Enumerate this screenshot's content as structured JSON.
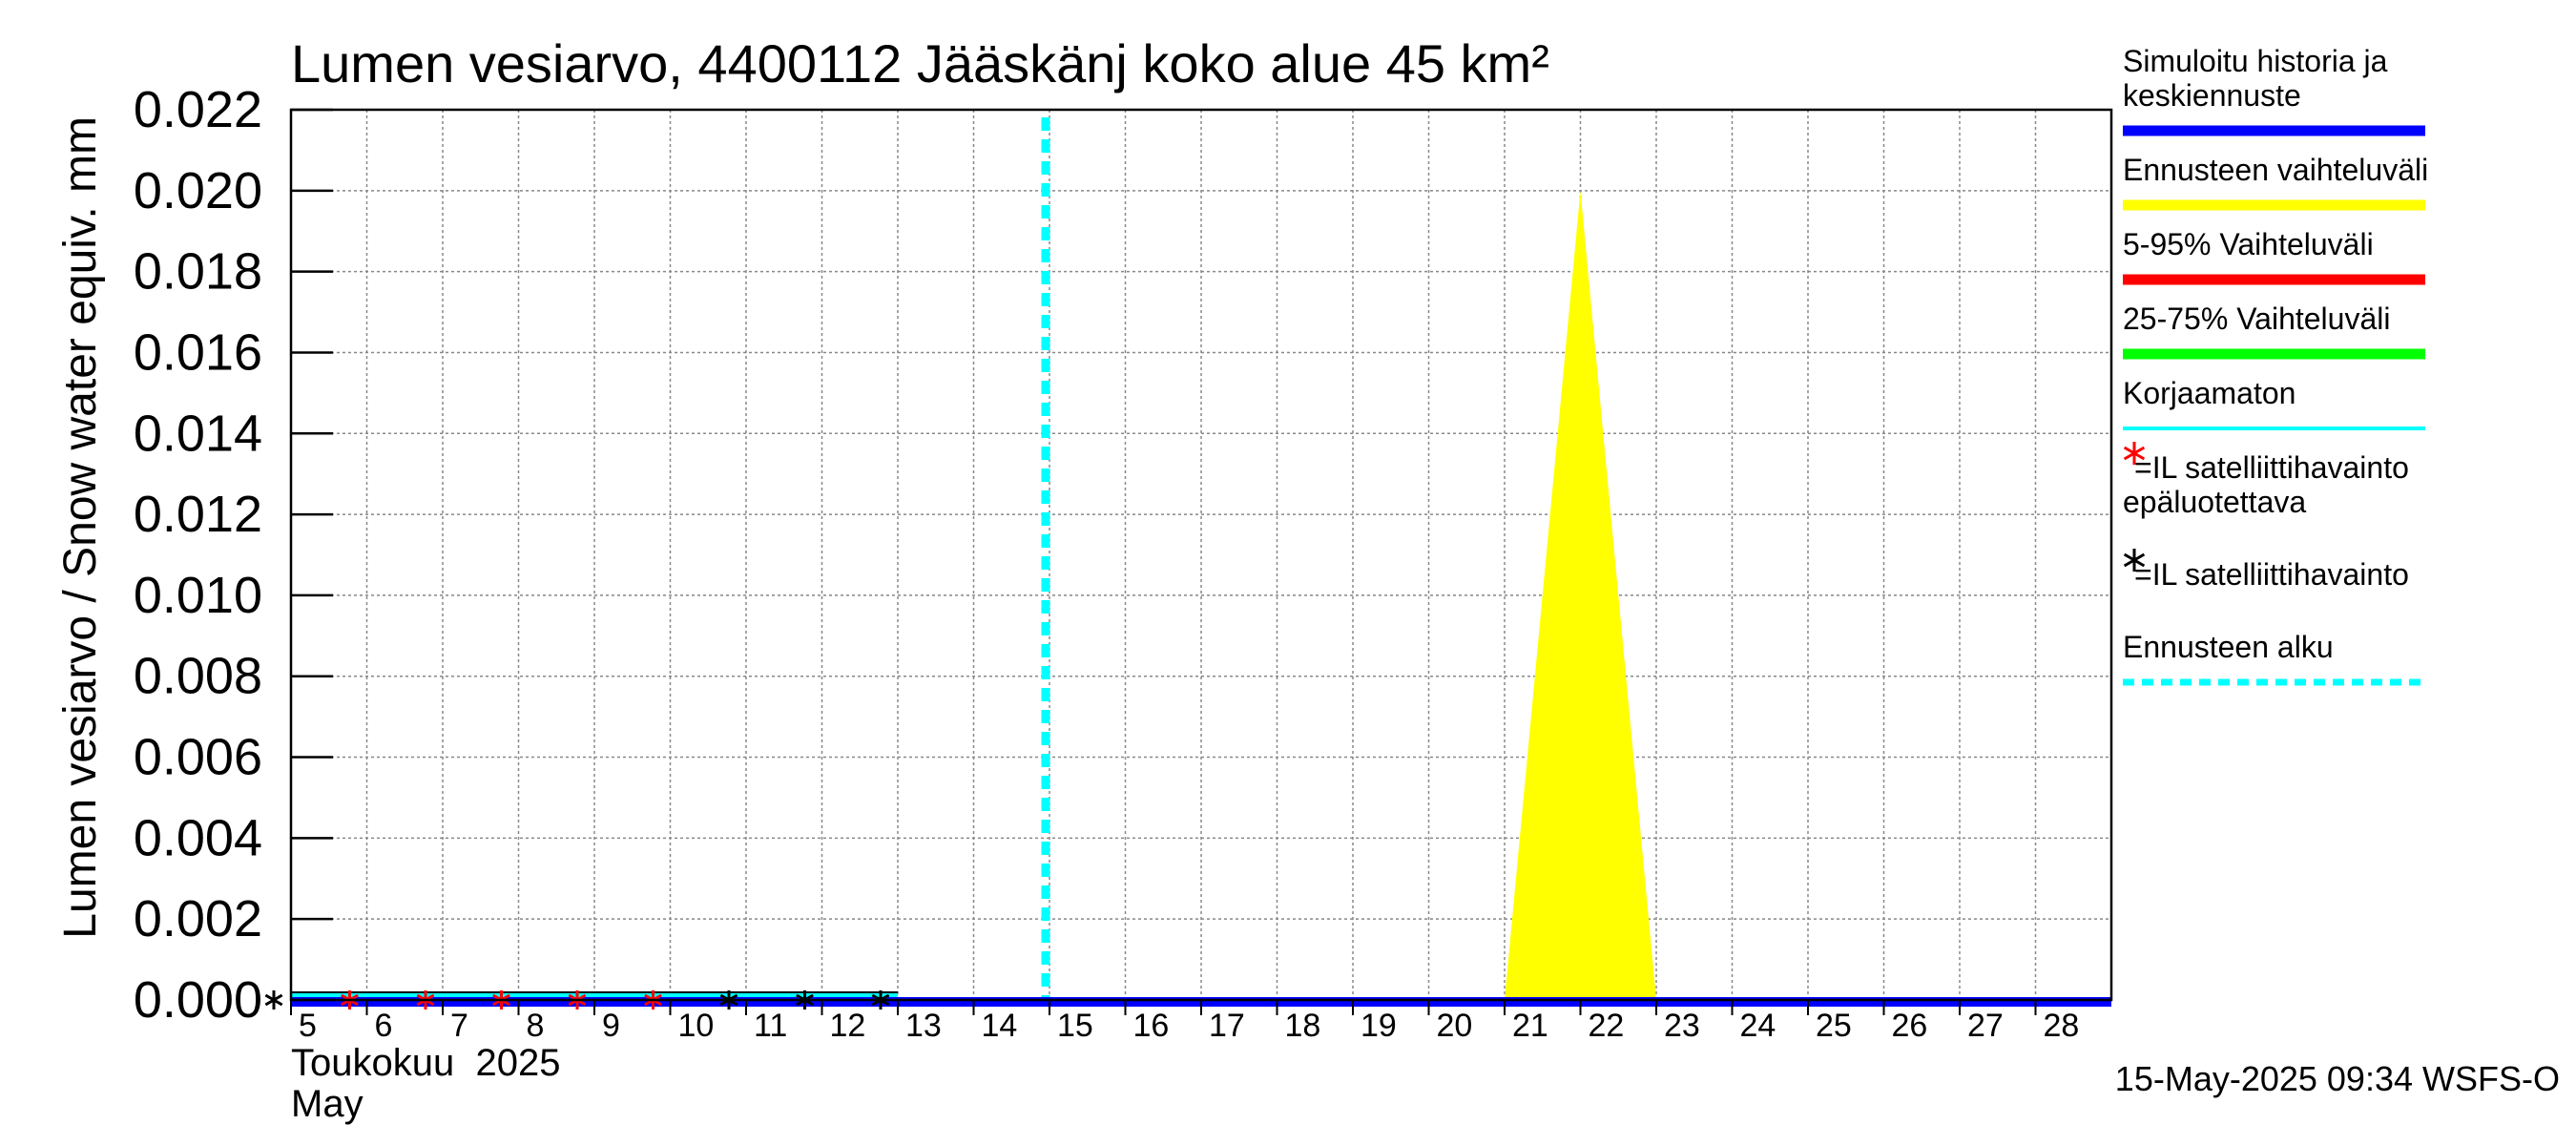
{
  "chart_data": {
    "type": "area",
    "title": "Lumen vesiarvo, 4400112 Jääskänj koko alue 45 km²",
    "ylabel": "Lumen vesiarvo / Snow water equiv.",
    "yunit": "mm",
    "ylim": [
      0,
      0.022
    ],
    "yticks": [
      "0.000",
      "0.002",
      "0.004",
      "0.006",
      "0.008",
      "0.010",
      "0.012",
      "0.014",
      "0.016",
      "0.018",
      "0.020",
      "0.022"
    ],
    "xlim": [
      5,
      29
    ],
    "xticks": [
      5,
      6,
      7,
      8,
      9,
      10,
      11,
      12,
      13,
      14,
      15,
      16,
      17,
      18,
      19,
      20,
      21,
      22,
      23,
      24,
      25,
      26,
      27,
      28
    ],
    "xlabel_line1": "Toukokuu  2025",
    "xlabel_line2": "May",
    "grid": true,
    "forecast_start": 15,
    "series": [
      {
        "name": "Simuloitu historia ja keskiennuste",
        "color": "#0000ff",
        "x": [
          5,
          29
        ],
        "y": [
          0,
          0
        ]
      },
      {
        "name": "Ennusteen vaihteluväli",
        "color": "#ffff00",
        "x": [
          21,
          22,
          23
        ],
        "y": [
          0,
          0.02,
          0
        ]
      },
      {
        "name": "Korjaamaton",
        "color": "#00ffff",
        "x": [
          5,
          13
        ],
        "y": [
          0,
          0
        ]
      }
    ],
    "observations_unreliable": {
      "color": "#ff0000",
      "x": [
        6,
        7,
        8,
        9,
        10
      ],
      "y": [
        0,
        0,
        0,
        0,
        0
      ]
    },
    "observations": {
      "color": "#000000",
      "x": [
        5,
        11,
        12,
        13
      ],
      "y": [
        0,
        0,
        0,
        0
      ]
    },
    "legend": [
      {
        "lines": [
          "Simuloitu historia ja",
          "keskiennuste"
        ],
        "kind": "line",
        "color": "#0000ff"
      },
      {
        "lines": [
          "Ennusteen vaihteluväli"
        ],
        "kind": "line",
        "color": "#ffff00"
      },
      {
        "lines": [
          "5-95% Vaihteluväli"
        ],
        "kind": "line",
        "color": "#ff0000"
      },
      {
        "lines": [
          "25-75% Vaihteluväli"
        ],
        "kind": "line",
        "color": "#00ff00"
      },
      {
        "lines": [
          "Korjaamaton"
        ],
        "kind": "thin",
        "color": "#00ffff"
      },
      {
        "lines": [
          "=IL satelliittihavainto",
          "epäluotettava"
        ],
        "kind": "star",
        "color": "#ff0000"
      },
      {
        "lines": [
          "=IL satelliittihavainto"
        ],
        "kind": "star",
        "color": "#000000"
      },
      {
        "lines": [
          "Ennusteen alku"
        ],
        "kind": "dashed",
        "color": "#00ffff"
      }
    ],
    "legend_position": "right"
  },
  "footer": {
    "timestamp": "15-May-2025 09:34 WSFS-O"
  }
}
